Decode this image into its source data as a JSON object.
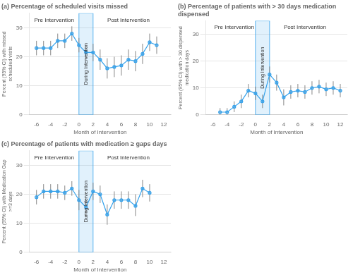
{
  "chart_data": [
    {
      "type": "line",
      "title": "(a) Percentage of scheduled visits missed",
      "x_label": "Month of Intervention",
      "y_label": "Percent (95% CI) with missed scheduled visits",
      "x": [
        -6,
        -5,
        -4,
        -3,
        -2,
        -1,
        0,
        1,
        2,
        3,
        4,
        5,
        6,
        7,
        8,
        9,
        10,
        11
      ],
      "values": [
        23.0,
        23.0,
        23.0,
        25.5,
        25.5,
        28.0,
        24.0,
        21.5,
        21.5,
        19.0,
        16.0,
        16.5,
        17.0,
        19.0,
        18.5,
        21.0,
        25.0,
        24.0
      ],
      "ci_low": [
        20.5,
        20.5,
        20.5,
        23.0,
        23.0,
        25.5,
        21.5,
        19.0,
        18.5,
        15.5,
        12.5,
        13.0,
        13.5,
        15.5,
        15.0,
        17.5,
        22.0,
        21.0
      ],
      "ci_high": [
        25.5,
        25.5,
        25.5,
        28.0,
        28.0,
        30.5,
        26.5,
        24.0,
        24.5,
        22.5,
        19.5,
        20.0,
        20.5,
        22.5,
        22.0,
        24.5,
        28.0,
        27.0
      ],
      "xlim": [
        -7,
        13
      ],
      "xticks": [
        -6,
        -4,
        -2,
        0,
        2,
        4,
        6,
        8,
        10,
        12
      ],
      "ylim": [
        0,
        35
      ],
      "yticks": [
        0,
        10,
        20,
        30
      ],
      "grid": "y",
      "marker": "circle",
      "line_style": "solid",
      "shaded_span": {
        "x": [
          0,
          2
        ],
        "text": "During Intervention"
      },
      "annotations": [
        {
          "text": "Pre Intervention",
          "x": -3.5,
          "y": 31.5
        },
        {
          "text": "Post Intervention",
          "x": 7.0,
          "y": 31.5
        }
      ]
    },
    {
      "type": "line",
      "title": "(b) Percentage of patients with > 30 days medication dispensed",
      "x_label": "Month of Intervention",
      "y_label": "Percent (95% CI) with > 30 dispensed medication days",
      "x": [
        -5,
        -4,
        -3,
        -2,
        -1,
        0,
        1,
        2,
        3,
        4,
        5,
        6,
        7,
        8,
        9,
        10,
        11,
        12
      ],
      "values": [
        1.0,
        1.0,
        3.0,
        5.0,
        9.0,
        8.0,
        5.0,
        15.0,
        12.0,
        6.5,
        8.5,
        9.0,
        8.5,
        10.0,
        10.5,
        9.5,
        10.0,
        9.0
      ],
      "ci_low": [
        0.0,
        0.0,
        1.0,
        2.5,
        6.5,
        5.5,
        2.5,
        12.0,
        9.0,
        3.5,
        6.0,
        6.5,
        6.0,
        7.5,
        8.0,
        7.0,
        7.5,
        6.5
      ],
      "ci_high": [
        2.5,
        2.5,
        5.0,
        7.5,
        11.5,
        10.5,
        7.5,
        18.0,
        15.0,
        9.5,
        11.0,
        11.5,
        11.0,
        12.5,
        13.0,
        12.0,
        12.5,
        11.5
      ],
      "xlim": [
        -7,
        13
      ],
      "xticks": [
        -6,
        -4,
        -2,
        0,
        2,
        4,
        6,
        8,
        10,
        12
      ],
      "ylim": [
        0,
        35
      ],
      "yticks": [
        0,
        10,
        20,
        30
      ],
      "grid": "y",
      "marker": "circle",
      "line_style": "solid",
      "shaded_span": {
        "x": [
          0,
          2
        ],
        "text": "During Intervention"
      },
      "annotations": [
        {
          "text": "Pre Intervention",
          "x": -3.0,
          "y": 31.5
        },
        {
          "text": "Post Intervention",
          "x": 7.0,
          "y": 31.5
        }
      ]
    },
    {
      "type": "line",
      "title": "(c) Percentage of patients with medication ≥ gaps days",
      "x_label": "Month of Intervention",
      "y_label": "Percent (95% CI) with Medication Gap >=3 days",
      "x": [
        -6,
        -5,
        -4,
        -3,
        -2,
        -1,
        0,
        1,
        2,
        3,
        4,
        5,
        6,
        7,
        8,
        9,
        10
      ],
      "values": [
        19.0,
        21.0,
        21.0,
        21.0,
        20.5,
        22.0,
        18.0,
        15.5,
        21.0,
        20.0,
        13.0,
        18.0,
        18.0,
        18.0,
        16.0,
        22.0,
        20.5
      ],
      "ci_low": [
        16.5,
        18.5,
        18.5,
        18.5,
        18.0,
        19.5,
        14.5,
        12.0,
        18.0,
        17.0,
        9.5,
        15.0,
        15.0,
        15.0,
        12.5,
        19.0,
        17.5
      ],
      "ci_high": [
        21.5,
        23.5,
        23.5,
        23.5,
        23.0,
        24.5,
        21.5,
        19.0,
        24.0,
        23.0,
        16.5,
        21.0,
        21.0,
        21.0,
        20.0,
        25.0,
        23.5
      ],
      "xlim": [
        -7,
        13
      ],
      "xticks": [
        -6,
        -4,
        -2,
        0,
        2,
        4,
        6,
        8,
        10,
        12
      ],
      "ylim": [
        0,
        35
      ],
      "yticks": [
        0,
        10,
        20,
        30
      ],
      "grid": "y",
      "marker": "circle",
      "line_style": "solid",
      "shaded_span": {
        "x": [
          0,
          2
        ],
        "text": "During Intervention"
      },
      "annotations": [
        {
          "text": "Pre Intervention",
          "x": -3.5,
          "y": 31.5
        },
        {
          "text": "Post Intervention",
          "x": 7.0,
          "y": 31.5
        }
      ]
    }
  ]
}
